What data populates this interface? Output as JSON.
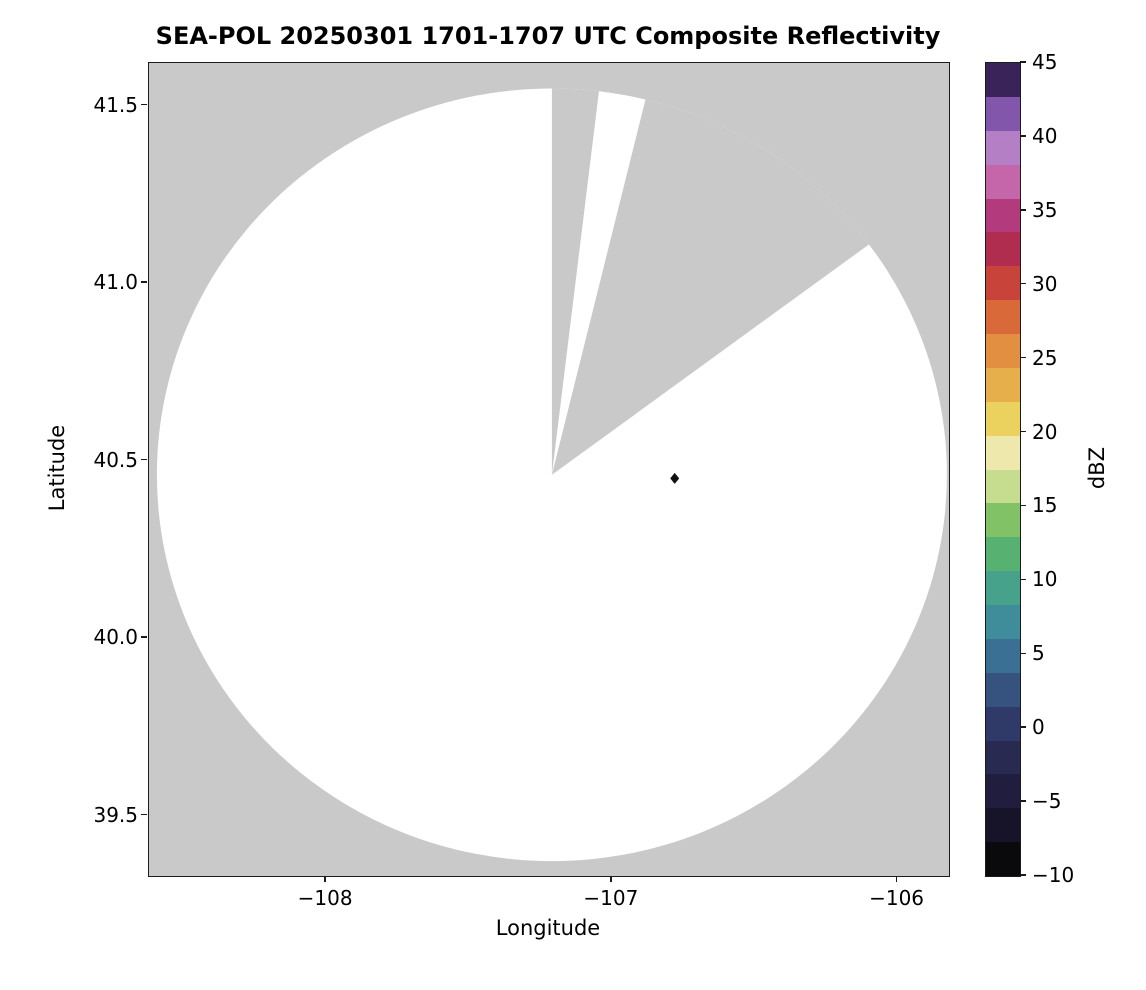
{
  "chart_data": {
    "type": "heatmap",
    "title": "SEA-POL 20250301 1701-1707 UTC Composite Reflectivity",
    "xlabel": "Longitude",
    "ylabel": "Latitude",
    "xlim": [
      -108.62,
      -105.82
    ],
    "ylim": [
      39.33,
      41.62
    ],
    "grid": false,
    "plot_bg_masked": "#c9c9c9",
    "xticks": {
      "values": [
        -108,
        -107,
        -106
      ],
      "labels": [
        "−108",
        "−107",
        "−106"
      ]
    },
    "yticks": {
      "values": [
        41.5,
        41.0,
        40.5,
        40.0,
        39.5
      ],
      "labels": [
        "41.5",
        "41.0",
        "40.5",
        "40.0",
        "39.5"
      ]
    },
    "radar": {
      "center_lon": -107.21,
      "center_lat": 40.46,
      "radius_lon_deg": 1.3825,
      "radius_lat_deg": 1.088,
      "coverage_fill": "#ffffff",
      "missing_sectors_az_deg": [
        [
          0,
          7
        ],
        [
          14,
          54
        ]
      ]
    },
    "site_marker": {
      "lon": -106.78,
      "lat": 40.45,
      "symbol": "diamond",
      "color": "#111111"
    },
    "colorbar": {
      "label": "dBZ",
      "min": -10,
      "max": 45,
      "ticks": {
        "values": [
          45,
          40,
          35,
          30,
          25,
          20,
          15,
          10,
          5,
          0,
          -5,
          -10
        ],
        "labels": [
          "45",
          "40",
          "35",
          "30",
          "25",
          "20",
          "15",
          "10",
          "5",
          "0",
          "−5",
          "−10"
        ]
      },
      "bands_bottom_to_top": [
        "#0a0a0c",
        "#17142a",
        "#201d3f",
        "#282a52",
        "#2f3a68",
        "#36527f",
        "#3a7094",
        "#3f8d9b",
        "#47a28c",
        "#57b271",
        "#82c266",
        "#c6dc8f",
        "#eee8ac",
        "#ebd25f",
        "#e7af4b",
        "#e28f41",
        "#d96939",
        "#c8433a",
        "#b02d4f",
        "#b23a7d",
        "#c565aa",
        "#b57fc5",
        "#8257ab",
        "#3a2358"
      ]
    }
  }
}
